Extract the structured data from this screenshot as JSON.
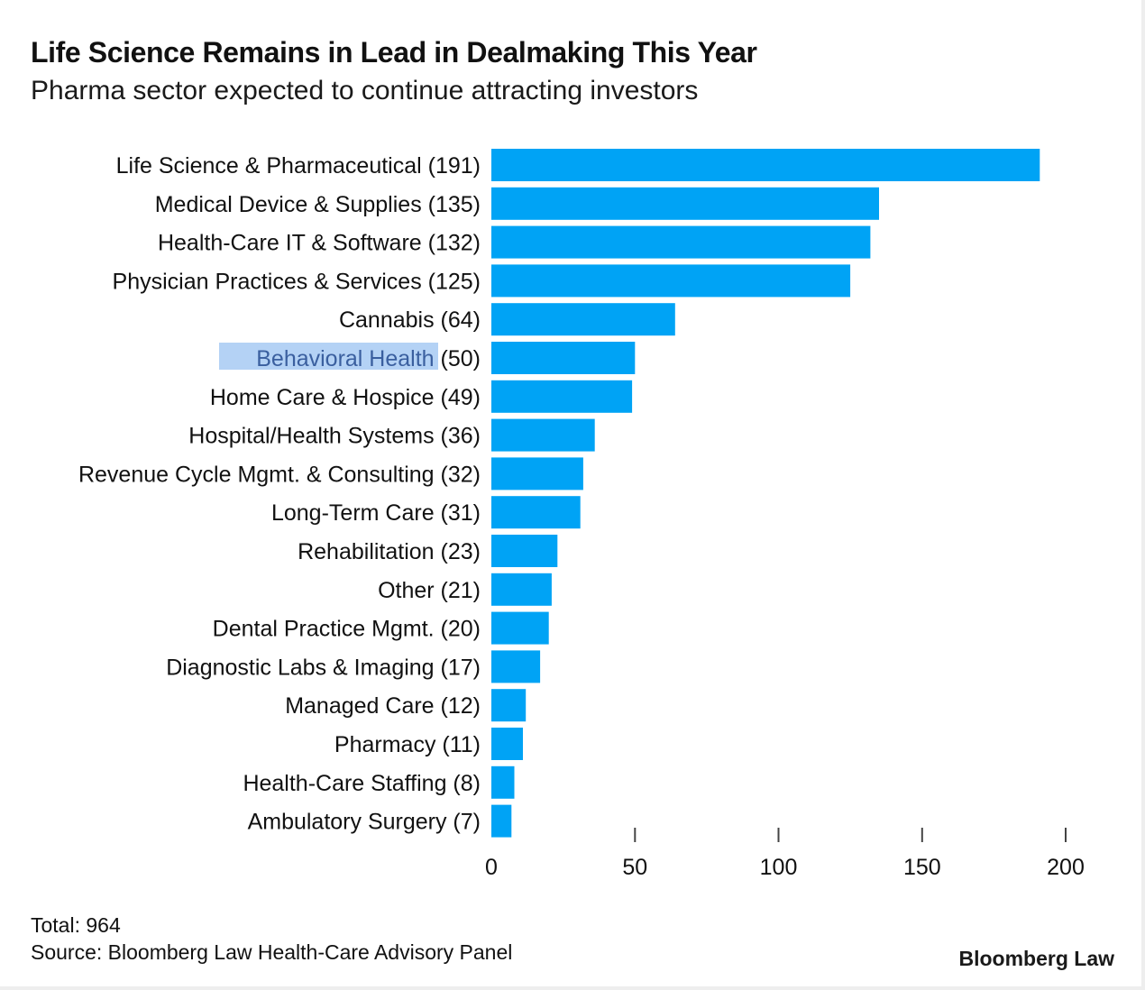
{
  "chart_data": {
    "type": "bar",
    "orientation": "horizontal",
    "title": "Life Science Remains in Lead in Dealmaking This Year",
    "subtitle": "Pharma sector expected to continue attracting investors",
    "categories": [
      "Life Science & Pharmaceutical (191)",
      "Medical Device & Supplies (135)",
      "Health-Care IT & Software (132)",
      "Physician Practices & Services (125)",
      "Cannabis (64)",
      "Behavioral Health (50)",
      "Home Care & Hospice (49)",
      "Hospital/Health Systems (36)",
      "Revenue Cycle Mgmt. & Consulting (32)",
      "Long-Term Care (31)",
      "Rehabilitation (23)",
      "Other (21)",
      "Dental Practice Mgmt. (20)",
      "Diagnostic Labs & Imaging (17)",
      "Managed Care (12)",
      "Pharmacy (11)",
      "Health-Care Staffing (8)",
      "Ambulatory Surgery (7)"
    ],
    "values": [
      191,
      135,
      132,
      125,
      64,
      50,
      49,
      36,
      32,
      31,
      23,
      21,
      20,
      17,
      12,
      11,
      8,
      7
    ],
    "xlim": [
      0,
      200
    ],
    "xticks": [
      0,
      50,
      100,
      150,
      200
    ],
    "bar_color": "#00a3f5",
    "highlight_color": "#b4d2f5",
    "highlighted_text": "Behavioral Health ",
    "grid": false,
    "legend": "none"
  },
  "footer": {
    "total": "Total: 964",
    "source": "Source: Bloomberg Law Health-Care Advisory Panel",
    "brand": "Bloomberg Law"
  }
}
